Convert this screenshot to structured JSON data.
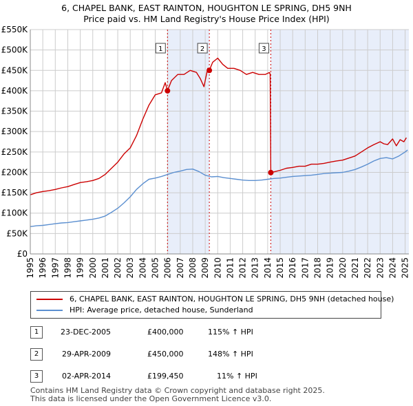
{
  "title_line1": "6, CHAPEL BANK, EAST RAINTON, HOUGHTON LE SPRING, DH5 9NH",
  "title_line2": "Price paid vs. HM Land Registry's House Price Index (HPI)",
  "colors": {
    "property": "#cc0000",
    "hpi": "#5b8fd0",
    "shade": "#e8eefa",
    "grid": "#cccccc"
  },
  "chart_data": {
    "type": "line",
    "title": "6, CHAPEL BANK, EAST RAINTON, HOUGHTON LE SPRING, DH5 9NH — Price paid vs. HM Land Registry's House Price Index (HPI)",
    "xlabel": "",
    "ylabel": "",
    "xlim": [
      1995,
      2025.3
    ],
    "ylim": [
      0,
      550000
    ],
    "y_ticks": [
      {
        "value": 0,
        "label": "£0"
      },
      {
        "value": 50000,
        "label": "£50K"
      },
      {
        "value": 100000,
        "label": "£100K"
      },
      {
        "value": 150000,
        "label": "£150K"
      },
      {
        "value": 200000,
        "label": "£200K"
      },
      {
        "value": 250000,
        "label": "£250K"
      },
      {
        "value": 300000,
        "label": "£300K"
      },
      {
        "value": 350000,
        "label": "£350K"
      },
      {
        "value": 400000,
        "label": "£400K"
      },
      {
        "value": 450000,
        "label": "£450K"
      },
      {
        "value": 500000,
        "label": "£500K"
      },
      {
        "value": 550000,
        "label": "£550K"
      }
    ],
    "x_ticks": [
      "1995",
      "1996",
      "1997",
      "1998",
      "1999",
      "2000",
      "2001",
      "2002",
      "2003",
      "2004",
      "2005",
      "2006",
      "2007",
      "2008",
      "2009",
      "2010",
      "2011",
      "2012",
      "2013",
      "2014",
      "2015",
      "2016",
      "2017",
      "2018",
      "2019",
      "2020",
      "2021",
      "2022",
      "2023",
      "2024",
      "2025"
    ],
    "shaded_ranges": [
      [
        2005.98,
        2009.33
      ],
      [
        2014.25,
        2025.3
      ]
    ],
    "series": [
      {
        "name": "6, CHAPEL BANK, EAST RAINTON, HOUGHTON LE SPRING, DH5 9NH (detached house)",
        "color": "#cc0000",
        "x": [
          1995.0,
          1995.5,
          1996.0,
          1996.5,
          1997.0,
          1997.5,
          1998.0,
          1998.5,
          1999.0,
          1999.5,
          2000.0,
          2000.5,
          2001.0,
          2001.5,
          2002.0,
          2002.5,
          2003.0,
          2003.5,
          2004.0,
          2004.5,
          2005.0,
          2005.5,
          2005.8,
          2005.98,
          2006.3,
          2006.8,
          2007.3,
          2007.8,
          2008.3,
          2008.6,
          2008.9,
          2009.2,
          2009.33,
          2009.6,
          2010.0,
          2010.4,
          2010.8,
          2011.3,
          2011.8,
          2012.3,
          2012.8,
          2013.3,
          2013.8,
          2014.15,
          2014.2,
          2014.25,
          2014.6,
          2015.0,
          2015.5,
          2016.0,
          2016.5,
          2017.0,
          2017.5,
          2018.0,
          2018.5,
          2019.0,
          2019.5,
          2020.0,
          2020.5,
          2021.0,
          2021.5,
          2022.0,
          2022.5,
          2023.0,
          2023.3,
          2023.6,
          2024.0,
          2024.3,
          2024.6,
          2024.9,
          2025.1
        ],
        "y": [
          145000,
          150000,
          153000,
          155000,
          158000,
          162000,
          165000,
          170000,
          175000,
          177000,
          180000,
          185000,
          195000,
          210000,
          225000,
          245000,
          260000,
          290000,
          330000,
          365000,
          390000,
          395000,
          420000,
          400000,
          425000,
          440000,
          440000,
          450000,
          445000,
          430000,
          410000,
          455000,
          450000,
          470000,
          480000,
          465000,
          455000,
          455000,
          450000,
          440000,
          445000,
          440000,
          440000,
          445000,
          440000,
          199450,
          202000,
          205000,
          210000,
          212000,
          215000,
          215000,
          220000,
          220000,
          222000,
          225000,
          228000,
          230000,
          235000,
          240000,
          250000,
          260000,
          268000,
          275000,
          270000,
          268000,
          282000,
          265000,
          280000,
          275000,
          285000
        ]
      },
      {
        "name": "HPI: Average price, detached house, Sunderland",
        "color": "#5b8fd0",
        "x": [
          1995.0,
          1995.5,
          1996.0,
          1996.5,
          1997.0,
          1997.5,
          1998.0,
          1998.5,
          1999.0,
          1999.5,
          2000.0,
          2000.5,
          2001.0,
          2001.5,
          2002.0,
          2002.5,
          2003.0,
          2003.5,
          2004.0,
          2004.5,
          2005.0,
          2005.5,
          2006.0,
          2006.5,
          2007.0,
          2007.5,
          2008.0,
          2008.5,
          2009.0,
          2009.5,
          2010.0,
          2010.5,
          2011.0,
          2011.5,
          2012.0,
          2012.5,
          2013.0,
          2013.5,
          2014.0,
          2014.5,
          2015.0,
          2015.5,
          2016.0,
          2016.5,
          2017.0,
          2017.5,
          2018.0,
          2018.5,
          2019.0,
          2019.5,
          2020.0,
          2020.5,
          2021.0,
          2021.5,
          2022.0,
          2022.5,
          2023.0,
          2023.5,
          2024.0,
          2024.5,
          2025.0,
          2025.2
        ],
        "y": [
          67000,
          69000,
          70000,
          72000,
          74000,
          76000,
          77000,
          79000,
          81000,
          83000,
          85000,
          88000,
          93000,
          102000,
          112000,
          125000,
          140000,
          158000,
          172000,
          183000,
          186000,
          190000,
          195000,
          200000,
          203000,
          207000,
          208000,
          202000,
          193000,
          189000,
          190000,
          187000,
          185000,
          183000,
          181000,
          180000,
          180000,
          181000,
          183000,
          185000,
          186000,
          188000,
          190000,
          191000,
          192000,
          193000,
          195000,
          197000,
          198000,
          199000,
          200000,
          203000,
          207000,
          213000,
          220000,
          228000,
          234000,
          236000,
          233000,
          240000,
          250000,
          255000
        ]
      }
    ],
    "sales": [
      {
        "num": "1",
        "x": 2005.98,
        "y": 400000
      },
      {
        "num": "2",
        "x": 2009.33,
        "y": 450000
      },
      {
        "num": "3",
        "x": 2014.25,
        "y": 199450
      }
    ]
  },
  "legend": {
    "property_label": "6, CHAPEL BANK, EAST RAINTON, HOUGHTON LE SPRING, DH5 9NH (detached house)",
    "hpi_label": "HPI: Average price, detached house, Sunderland"
  },
  "transactions": [
    {
      "num": "1",
      "date": "23-DEC-2005",
      "price": "£400,000",
      "hpi": "115% ↑ HPI"
    },
    {
      "num": "2",
      "date": "29-APR-2009",
      "price": "£450,000",
      "hpi": "148% ↑ HPI"
    },
    {
      "num": "3",
      "date": "02-APR-2014",
      "price": "£199,450",
      "hpi": "11% ↑ HPI"
    }
  ],
  "footer": {
    "line1": "Contains HM Land Registry data © Crown copyright and database right 2025.",
    "line2": "This data is licensed under the Open Government Licence v3.0."
  }
}
